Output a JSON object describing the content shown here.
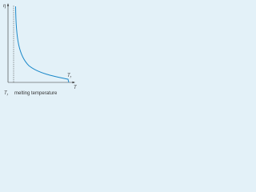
{
  "y_axis_label": "η",
  "x_axis_label": "T",
  "curve_label": {
    "symbol": "T",
    "subscript": "f"
  },
  "legend": {
    "symbol": "T",
    "subscript": "f",
    "text": "melting temperature"
  }
}
